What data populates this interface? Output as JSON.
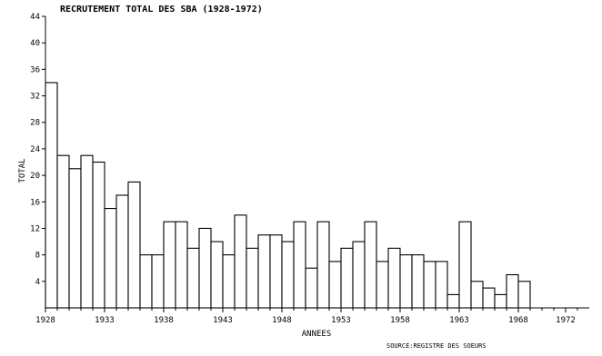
{
  "chart_data": {
    "type": "bar",
    "title": "RECRUTEMENT TOTAL DES SBA (1928-1972)",
    "xlabel": "ANNEES",
    "ylabel": "TOTAL",
    "source": "SOURCE:REGISTRE DES SOEURS",
    "x_ticks": [
      "1928",
      "1933",
      "1938",
      "1943",
      "1948",
      "1953",
      "1958",
      "1963",
      "1968",
      "1972"
    ],
    "y_ticks": [
      "4",
      "8",
      "12",
      "16",
      "20",
      "24",
      "28",
      "32",
      "36",
      "40",
      "44"
    ],
    "xlim": [
      1928,
      1973
    ],
    "ylim": [
      0,
      44
    ],
    "grid": false,
    "years": [
      1928,
      1929,
      1930,
      1931,
      1932,
      1933,
      1934,
      1935,
      1936,
      1937,
      1938,
      1939,
      1940,
      1941,
      1942,
      1943,
      1944,
      1945,
      1946,
      1947,
      1948,
      1949,
      1950,
      1951,
      1952,
      1953,
      1954,
      1955,
      1956,
      1957,
      1958,
      1959,
      1960,
      1961,
      1962,
      1963,
      1964,
      1965,
      1966,
      1967,
      1968
    ],
    "values": [
      34,
      23,
      21,
      23,
      22,
      15,
      17,
      19,
      8,
      8,
      13,
      13,
      9,
      12,
      10,
      8,
      14,
      9,
      11,
      11,
      10,
      13,
      6,
      13,
      7,
      9,
      10,
      13,
      7,
      9,
      8,
      8,
      7,
      7,
      2,
      13,
      4,
      3,
      2,
      5,
      4
    ]
  }
}
